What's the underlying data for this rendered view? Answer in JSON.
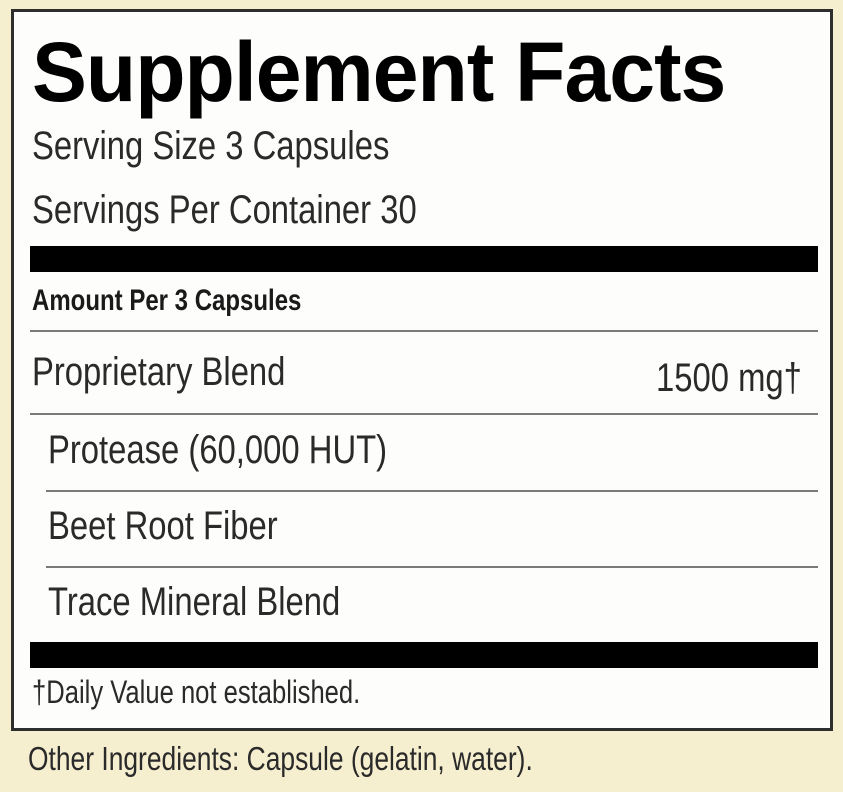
{
  "label": {
    "title": "Supplement Facts",
    "serving_size": "Serving Size 3 Capsules",
    "servings_per_container": "Servings Per Container 30",
    "amount_header": "Amount Per 3 Capsules",
    "rows": [
      {
        "name": "Proprietary Blend",
        "amount": "1500 mg†"
      },
      {
        "name": "Protease (60,000 HUT)"
      },
      {
        "name": "Beet Root Fiber"
      },
      {
        "name": "Trace Mineral Blend"
      }
    ],
    "footnote": "†Daily Value not established."
  },
  "other_ingredients": "Other Ingredients: Capsule (gelatin, water).",
  "colors": {
    "background": "#f6efcf",
    "panel": "#fdfdfb",
    "bars": "#000000"
  }
}
